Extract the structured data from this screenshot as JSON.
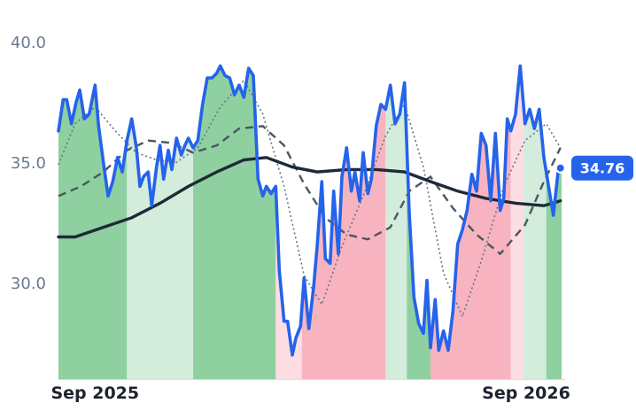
{
  "chart_data": {
    "type": "line",
    "title": "",
    "xlabel": "",
    "ylabel": "",
    "x_range": [
      "2025-08-01",
      "2026-10-01"
    ],
    "ylim": [
      26.0,
      41.0
    ],
    "y_ticks": [
      {
        "value": 30,
        "label": "30.0"
      },
      {
        "value": 35,
        "label": "35.0"
      },
      {
        "value": 40,
        "label": "40.0"
      }
    ],
    "x_ticks": [
      {
        "date": "2025-09-01",
        "label": "Sep 2025"
      },
      {
        "date": "2026-09-01",
        "label": "Sep 2026"
      }
    ],
    "grid": false,
    "last_value_label": "34.76",
    "colors": {
      "price": "#2563eb",
      "sma_long": "#1f2937",
      "sma_mid": "#4b5563",
      "sma_short": "#6b7280",
      "up_strong": "#8fd0a0",
      "up_weak": "#d3ecdb",
      "down_strong": "#f7b4c0",
      "down_weak": "#fcdde3",
      "badge": "#2563eb"
    },
    "regime_bands": [
      {
        "start": "2025-08-01",
        "end": "2025-09-28",
        "state": "up_strong"
      },
      {
        "start": "2025-09-28",
        "end": "2025-11-23",
        "state": "up_weak"
      },
      {
        "start": "2025-11-23",
        "end": "2026-02-01",
        "state": "up_strong"
      },
      {
        "start": "2026-02-01",
        "end": "2026-02-23",
        "state": "down_weak"
      },
      {
        "start": "2026-02-23",
        "end": "2026-05-05",
        "state": "down_strong"
      },
      {
        "start": "2026-05-05",
        "end": "2026-05-23",
        "state": "up_weak"
      },
      {
        "start": "2026-05-23",
        "end": "2026-06-12",
        "state": "up_strong"
      },
      {
        "start": "2026-06-12",
        "end": "2026-08-19",
        "state": "down_strong"
      },
      {
        "start": "2026-08-19",
        "end": "2026-08-30",
        "state": "down_weak"
      },
      {
        "start": "2026-08-30",
        "end": "2026-09-18",
        "state": "up_weak"
      },
      {
        "start": "2026-09-18",
        "end": "2026-10-01",
        "state": "up_strong"
      }
    ],
    "series": [
      {
        "key": "price",
        "values": [
          {
            "x": "2025-08-01",
            "y": 36.3
          },
          {
            "x": "2025-08-05",
            "y": 37.6
          },
          {
            "x": "2025-08-08",
            "y": 37.6
          },
          {
            "x": "2025-08-12",
            "y": 36.6
          },
          {
            "x": "2025-08-16",
            "y": 37.5
          },
          {
            "x": "2025-08-19",
            "y": 38.0
          },
          {
            "x": "2025-08-23",
            "y": 36.8
          },
          {
            "x": "2025-08-27",
            "y": 37.0
          },
          {
            "x": "2025-09-01",
            "y": 38.2
          },
          {
            "x": "2025-09-04",
            "y": 36.5
          },
          {
            "x": "2025-09-08",
            "y": 35.0
          },
          {
            "x": "2025-09-12",
            "y": 33.6
          },
          {
            "x": "2025-09-16",
            "y": 34.2
          },
          {
            "x": "2025-09-20",
            "y": 35.2
          },
          {
            "x": "2025-09-24",
            "y": 34.6
          },
          {
            "x": "2025-09-28",
            "y": 35.9
          },
          {
            "x": "2025-10-02",
            "y": 36.8
          },
          {
            "x": "2025-10-06",
            "y": 35.6
          },
          {
            "x": "2025-10-09",
            "y": 34.0
          },
          {
            "x": "2025-10-12",
            "y": 34.4
          },
          {
            "x": "2025-10-16",
            "y": 34.6
          },
          {
            "x": "2025-10-19",
            "y": 33.2
          },
          {
            "x": "2025-10-23",
            "y": 34.8
          },
          {
            "x": "2025-10-26",
            "y": 35.7
          },
          {
            "x": "2025-10-29",
            "y": 34.3
          },
          {
            "x": "2025-11-02",
            "y": 35.5
          },
          {
            "x": "2025-11-05",
            "y": 34.7
          },
          {
            "x": "2025-11-09",
            "y": 36.0
          },
          {
            "x": "2025-11-13",
            "y": 35.3
          },
          {
            "x": "2025-11-16",
            "y": 35.7
          },
          {
            "x": "2025-11-19",
            "y": 36.0
          },
          {
            "x": "2025-11-23",
            "y": 35.6
          },
          {
            "x": "2025-11-27",
            "y": 35.9
          },
          {
            "x": "2025-12-01",
            "y": 37.4
          },
          {
            "x": "2025-12-05",
            "y": 38.5
          },
          {
            "x": "2025-12-09",
            "y": 38.5
          },
          {
            "x": "2025-12-13",
            "y": 38.7
          },
          {
            "x": "2025-12-16",
            "y": 39.0
          },
          {
            "x": "2025-12-20",
            "y": 38.6
          },
          {
            "x": "2025-12-24",
            "y": 38.5
          },
          {
            "x": "2025-12-28",
            "y": 37.8
          },
          {
            "x": "2026-01-01",
            "y": 38.2
          },
          {
            "x": "2026-01-05",
            "y": 37.7
          },
          {
            "x": "2026-01-09",
            "y": 38.9
          },
          {
            "x": "2026-01-13",
            "y": 38.6
          },
          {
            "x": "2026-01-17",
            "y": 34.3
          },
          {
            "x": "2026-01-21",
            "y": 33.6
          },
          {
            "x": "2026-01-24",
            "y": 34.0
          },
          {
            "x": "2026-01-28",
            "y": 33.7
          },
          {
            "x": "2026-02-01",
            "y": 34.0
          },
          {
            "x": "2026-02-04",
            "y": 30.5
          },
          {
            "x": "2026-02-08",
            "y": 28.4
          },
          {
            "x": "2026-02-11",
            "y": 28.4
          },
          {
            "x": "2026-02-15",
            "y": 27.0
          },
          {
            "x": "2026-02-18",
            "y": 27.7
          },
          {
            "x": "2026-02-22",
            "y": 28.2
          },
          {
            "x": "2026-02-25",
            "y": 30.2
          },
          {
            "x": "2026-03-01",
            "y": 28.1
          },
          {
            "x": "2026-03-05",
            "y": 29.8
          },
          {
            "x": "2026-03-08",
            "y": 31.5
          },
          {
            "x": "2026-03-12",
            "y": 34.2
          },
          {
            "x": "2026-03-15",
            "y": 31.0
          },
          {
            "x": "2026-03-19",
            "y": 30.8
          },
          {
            "x": "2026-03-22",
            "y": 33.8
          },
          {
            "x": "2026-03-26",
            "y": 31.2
          },
          {
            "x": "2026-03-29",
            "y": 34.4
          },
          {
            "x": "2026-04-02",
            "y": 35.6
          },
          {
            "x": "2026-04-06",
            "y": 33.8
          },
          {
            "x": "2026-04-09",
            "y": 34.6
          },
          {
            "x": "2026-04-13",
            "y": 33.4
          },
          {
            "x": "2026-04-16",
            "y": 35.4
          },
          {
            "x": "2026-04-20",
            "y": 33.7
          },
          {
            "x": "2026-04-23",
            "y": 34.3
          },
          {
            "x": "2026-04-27",
            "y": 36.5
          },
          {
            "x": "2026-05-01",
            "y": 37.4
          },
          {
            "x": "2026-05-05",
            "y": 37.2
          },
          {
            "x": "2026-05-09",
            "y": 38.2
          },
          {
            "x": "2026-05-13",
            "y": 36.6
          },
          {
            "x": "2026-05-17",
            "y": 37.0
          },
          {
            "x": "2026-05-21",
            "y": 38.3
          },
          {
            "x": "2026-05-25",
            "y": 32.9
          },
          {
            "x": "2026-05-29",
            "y": 29.4
          },
          {
            "x": "2026-06-02",
            "y": 28.3
          },
          {
            "x": "2026-06-06",
            "y": 27.9
          },
          {
            "x": "2026-06-09",
            "y": 30.1
          },
          {
            "x": "2026-06-12",
            "y": 27.3
          },
          {
            "x": "2026-06-16",
            "y": 29.3
          },
          {
            "x": "2026-06-19",
            "y": 27.2
          },
          {
            "x": "2026-06-23",
            "y": 28.0
          },
          {
            "x": "2026-06-27",
            "y": 27.2
          },
          {
            "x": "2026-07-01",
            "y": 28.8
          },
          {
            "x": "2026-07-05",
            "y": 31.6
          },
          {
            "x": "2026-07-09",
            "y": 32.2
          },
          {
            "x": "2026-07-13",
            "y": 33.0
          },
          {
            "x": "2026-07-17",
            "y": 34.5
          },
          {
            "x": "2026-07-21",
            "y": 33.8
          },
          {
            "x": "2026-07-25",
            "y": 36.2
          },
          {
            "x": "2026-07-29",
            "y": 35.7
          },
          {
            "x": "2026-08-02",
            "y": 33.4
          },
          {
            "x": "2026-08-06",
            "y": 36.2
          },
          {
            "x": "2026-08-10",
            "y": 33.0
          },
          {
            "x": "2026-08-13",
            "y": 33.5
          },
          {
            "x": "2026-08-16",
            "y": 36.8
          },
          {
            "x": "2026-08-19",
            "y": 36.3
          },
          {
            "x": "2026-08-23",
            "y": 37.0
          },
          {
            "x": "2026-08-27",
            "y": 39.0
          },
          {
            "x": "2026-08-31",
            "y": 36.6
          },
          {
            "x": "2026-09-04",
            "y": 37.2
          },
          {
            "x": "2026-09-08",
            "y": 36.4
          },
          {
            "x": "2026-09-12",
            "y": 37.2
          },
          {
            "x": "2026-09-16",
            "y": 35.2
          },
          {
            "x": "2026-09-20",
            "y": 34.0
          },
          {
            "x": "2026-09-24",
            "y": 32.8
          },
          {
            "x": "2026-09-28",
            "y": 34.6
          },
          {
            "x": "2026-09-30",
            "y": 34.76
          }
        ]
      },
      {
        "key": "sma_short",
        "values": [
          {
            "x": "2025-08-01",
            "y": 34.9
          },
          {
            "x": "2025-08-15",
            "y": 36.6
          },
          {
            "x": "2025-09-01",
            "y": 37.3
          },
          {
            "x": "2025-09-20",
            "y": 36.2
          },
          {
            "x": "2025-10-06",
            "y": 35.4
          },
          {
            "x": "2025-10-23",
            "y": 35.1
          },
          {
            "x": "2025-11-09",
            "y": 35.0
          },
          {
            "x": "2025-11-27",
            "y": 35.6
          },
          {
            "x": "2025-12-16",
            "y": 37.3
          },
          {
            "x": "2026-01-05",
            "y": 38.4
          },
          {
            "x": "2026-01-21",
            "y": 37.0
          },
          {
            "x": "2026-02-08",
            "y": 34.0
          },
          {
            "x": "2026-02-25",
            "y": 30.3
          },
          {
            "x": "2026-03-12",
            "y": 29.1
          },
          {
            "x": "2026-03-29",
            "y": 31.5
          },
          {
            "x": "2026-04-16",
            "y": 33.6
          },
          {
            "x": "2026-05-05",
            "y": 36.1
          },
          {
            "x": "2026-05-21",
            "y": 37.4
          },
          {
            "x": "2026-06-06",
            "y": 34.8
          },
          {
            "x": "2026-06-23",
            "y": 30.4
          },
          {
            "x": "2026-07-09",
            "y": 28.6
          },
          {
            "x": "2026-07-25",
            "y": 30.9
          },
          {
            "x": "2026-08-13",
            "y": 34.0
          },
          {
            "x": "2026-08-31",
            "y": 35.9
          },
          {
            "x": "2026-09-18",
            "y": 36.6
          },
          {
            "x": "2026-09-30",
            "y": 35.6
          }
        ]
      },
      {
        "key": "sma_mid",
        "values": [
          {
            "x": "2025-08-01",
            "y": 33.6
          },
          {
            "x": "2025-08-20",
            "y": 34.0
          },
          {
            "x": "2025-09-08",
            "y": 34.6
          },
          {
            "x": "2025-09-28",
            "y": 35.5
          },
          {
            "x": "2025-10-16",
            "y": 35.9
          },
          {
            "x": "2025-11-05",
            "y": 35.8
          },
          {
            "x": "2025-11-23",
            "y": 35.4
          },
          {
            "x": "2025-12-13",
            "y": 35.7
          },
          {
            "x": "2026-01-01",
            "y": 36.4
          },
          {
            "x": "2026-01-21",
            "y": 36.5
          },
          {
            "x": "2026-02-08",
            "y": 35.7
          },
          {
            "x": "2026-02-25",
            "y": 34.1
          },
          {
            "x": "2026-03-15",
            "y": 32.7
          },
          {
            "x": "2026-04-02",
            "y": 32.0
          },
          {
            "x": "2026-04-20",
            "y": 31.8
          },
          {
            "x": "2026-05-09",
            "y": 32.3
          },
          {
            "x": "2026-05-25",
            "y": 33.8
          },
          {
            "x": "2026-06-12",
            "y": 34.4
          },
          {
            "x": "2026-07-01",
            "y": 33.1
          },
          {
            "x": "2026-07-21",
            "y": 32.0
          },
          {
            "x": "2026-08-10",
            "y": 31.2
          },
          {
            "x": "2026-08-31",
            "y": 32.4
          },
          {
            "x": "2026-09-16",
            "y": 34.2
          },
          {
            "x": "2026-09-30",
            "y": 35.6
          }
        ]
      },
      {
        "key": "sma_long",
        "values": [
          {
            "x": "2025-08-01",
            "y": 31.9
          },
          {
            "x": "2025-08-15",
            "y": 31.9
          },
          {
            "x": "2025-09-08",
            "y": 32.3
          },
          {
            "x": "2025-10-02",
            "y": 32.7
          },
          {
            "x": "2025-10-26",
            "y": 33.3
          },
          {
            "x": "2025-11-19",
            "y": 34.0
          },
          {
            "x": "2025-12-13",
            "y": 34.6
          },
          {
            "x": "2026-01-05",
            "y": 35.1
          },
          {
            "x": "2026-01-24",
            "y": 35.2
          },
          {
            "x": "2026-02-15",
            "y": 34.8
          },
          {
            "x": "2026-03-08",
            "y": 34.6
          },
          {
            "x": "2026-04-02",
            "y": 34.7
          },
          {
            "x": "2026-04-27",
            "y": 34.7
          },
          {
            "x": "2026-05-21",
            "y": 34.6
          },
          {
            "x": "2026-06-12",
            "y": 34.2
          },
          {
            "x": "2026-07-05",
            "y": 33.8
          },
          {
            "x": "2026-07-29",
            "y": 33.5
          },
          {
            "x": "2026-08-23",
            "y": 33.3
          },
          {
            "x": "2026-09-16",
            "y": 33.2
          },
          {
            "x": "2026-09-30",
            "y": 33.4
          }
        ]
      }
    ]
  }
}
